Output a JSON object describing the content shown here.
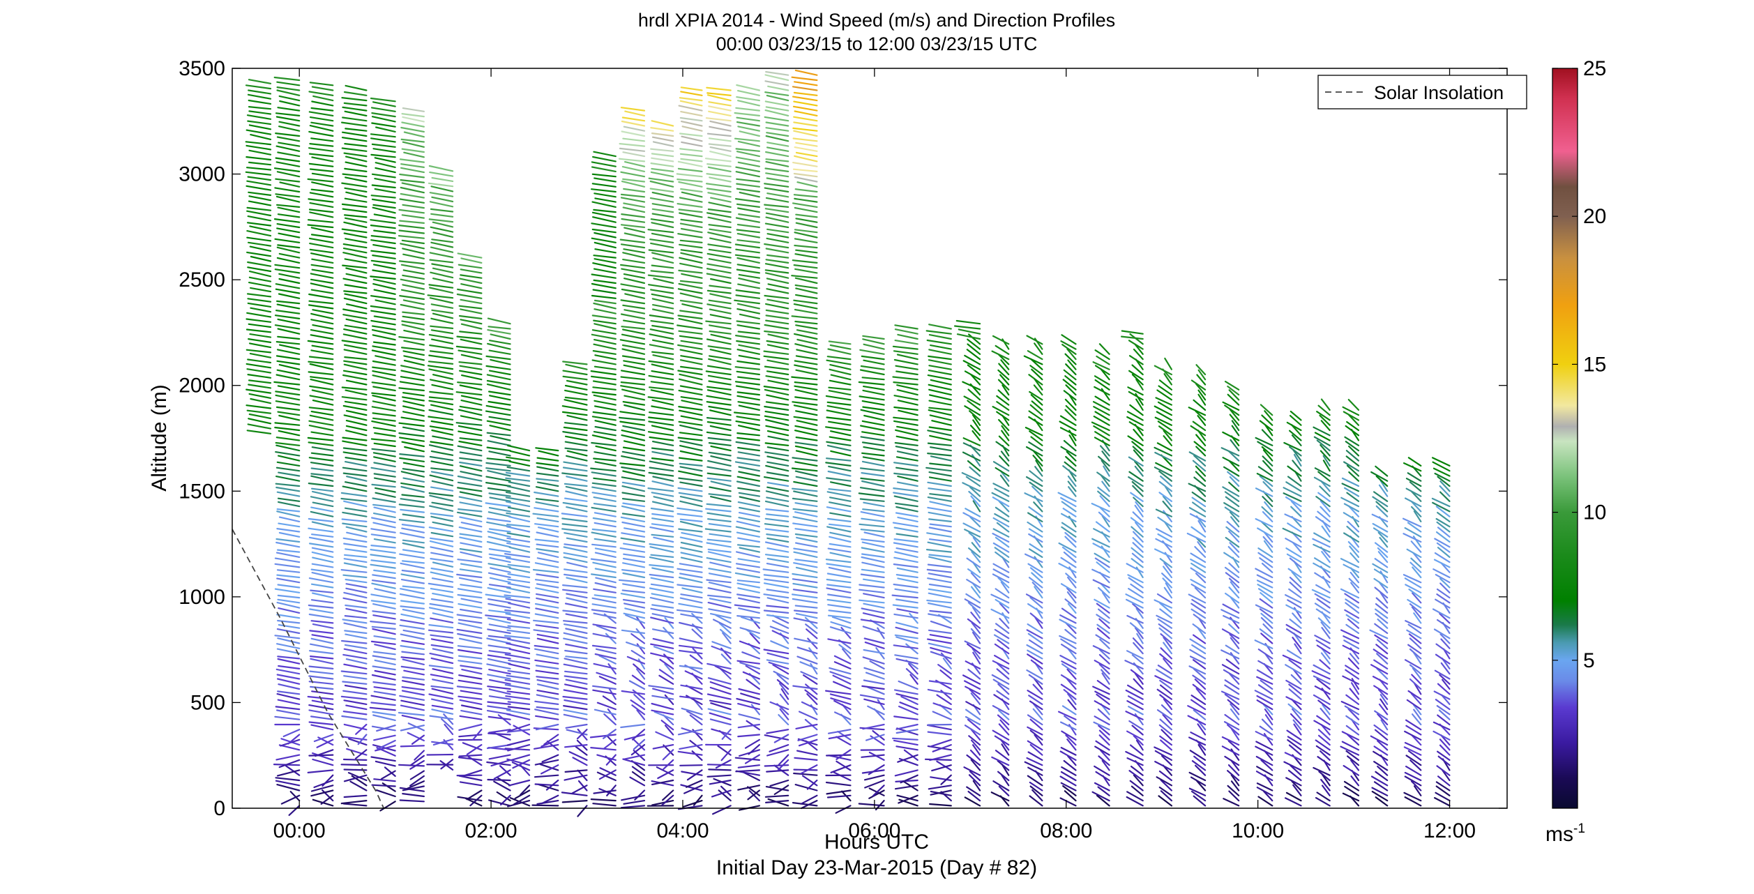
{
  "chart_data": {
    "type": "wind-profile-barbs",
    "title": "hrdl XPIA 2014 - Wind Speed (m/s) and Direction Profiles",
    "subtitle": "00:00 03/23/15 to 12:00 03/23/15  UTC",
    "xlabel": "Hours UTC",
    "xlabel2": "Initial Day 23-Mar-2015 (Day # 82)",
    "ylabel": "Altitude (m)",
    "xlim": [
      -0.7,
      12.6
    ],
    "ylim": [
      0,
      3500
    ],
    "x_ticks": [
      {
        "value": 0,
        "label": "00:00"
      },
      {
        "value": 2,
        "label": "02:00"
      },
      {
        "value": 4,
        "label": "04:00"
      },
      {
        "value": 6,
        "label": "06:00"
      },
      {
        "value": 8,
        "label": "08:00"
      },
      {
        "value": 10,
        "label": "10:00"
      },
      {
        "value": 12,
        "label": "12:00"
      }
    ],
    "y_ticks": [
      {
        "value": 0,
        "label": "0"
      },
      {
        "value": 500,
        "label": "500"
      },
      {
        "value": 1000,
        "label": "1000"
      },
      {
        "value": 1500,
        "label": "1500"
      },
      {
        "value": 2000,
        "label": "2000"
      },
      {
        "value": 2500,
        "label": "2500"
      },
      {
        "value": 3000,
        "label": "3000"
      },
      {
        "value": 3500,
        "label": "3500"
      }
    ],
    "legend": {
      "entries": [
        "Solar Insolation"
      ],
      "placement": "top-right"
    },
    "colorbar": {
      "range": [
        0,
        25
      ],
      "ticks": [
        {
          "value": 5,
          "label": "5"
        },
        {
          "value": 10,
          "label": "10"
        },
        {
          "value": 15,
          "label": "15"
        },
        {
          "value": 20,
          "label": "20"
        },
        {
          "value": 25,
          "label": "25"
        }
      ],
      "unit": "ms",
      "unit_exponent": "-1"
    },
    "solar_insolation": {
      "x": [
        -0.7,
        -0.2,
        0.3,
        0.8,
        0.88
      ],
      "y": [
        1320,
        900,
        450,
        80,
        0
      ]
    },
    "profile_times": [
      -0.3,
      0.0,
      0.35,
      0.7,
      1.0,
      1.3,
      1.6,
      1.9,
      2.2,
      2.4,
      2.7,
      3.0,
      3.3,
      3.6,
      3.9,
      4.2,
      4.5,
      4.8,
      5.1,
      5.4,
      5.75,
      6.1,
      6.45,
      6.8,
      7.1,
      7.4,
      7.75,
      8.1,
      8.45,
      8.8,
      9.1,
      9.45,
      9.8,
      10.15,
      10.45,
      10.75,
      11.05,
      11.35,
      11.7,
      12.0
    ],
    "profile_tops": [
      3450,
      3450,
      3430,
      3400,
      3350,
      3300,
      3020,
      2620,
      2300,
      1700,
      1700,
      2100,
      3100,
      3300,
      3230,
      3400,
      3400,
      3400,
      3470,
      3470,
      2200,
      2230,
      2280,
      2500,
      2300,
      2200,
      2200,
      2200,
      2150,
      2250,
      2090,
      2060,
      2000,
      1870,
      1850,
      1900,
      1900,
      1590,
      1640,
      1640
    ],
    "profile_bottoms": [
      1760,
      0,
      0,
      0,
      20,
      20,
      170,
      0,
      0,
      0,
      0,
      0,
      0,
      0,
      0,
      0,
      0,
      0,
      0,
      0,
      0,
      0,
      0,
      0,
      0,
      0,
      0,
      0,
      0,
      0,
      0,
      0,
      0,
      0,
      0,
      0,
      0,
      0,
      0,
      0
    ],
    "wind_profiles": [
      {
        "t": 4.8,
        "heights": [
          0,
          500,
          1000,
          1500,
          2000,
          2500,
          3000,
          3400
        ],
        "speeds": [
          1.5,
          2.5,
          3.5,
          4.5,
          6.0,
          8.5,
          10.5,
          13.0
        ],
        "directions_deg": [
          210,
          250,
          260,
          270,
          275,
          275,
          270,
          265
        ]
      },
      {
        "t": 8.1,
        "heights": [
          0,
          500,
          1000,
          1500,
          2000,
          2200
        ],
        "speeds": [
          1.0,
          3.0,
          4.0,
          5.5,
          7.5,
          8.0
        ],
        "directions_deg": [
          180,
          230,
          300,
          320,
          330,
          330
        ]
      },
      {
        "t": 11.35,
        "heights": [
          0,
          500,
          1000,
          1500,
          1590
        ],
        "speeds": [
          2.0,
          3.5,
          5.0,
          7.5,
          8.0
        ],
        "directions_deg": [
          250,
          270,
          300,
          320,
          320
        ]
      }
    ]
  }
}
